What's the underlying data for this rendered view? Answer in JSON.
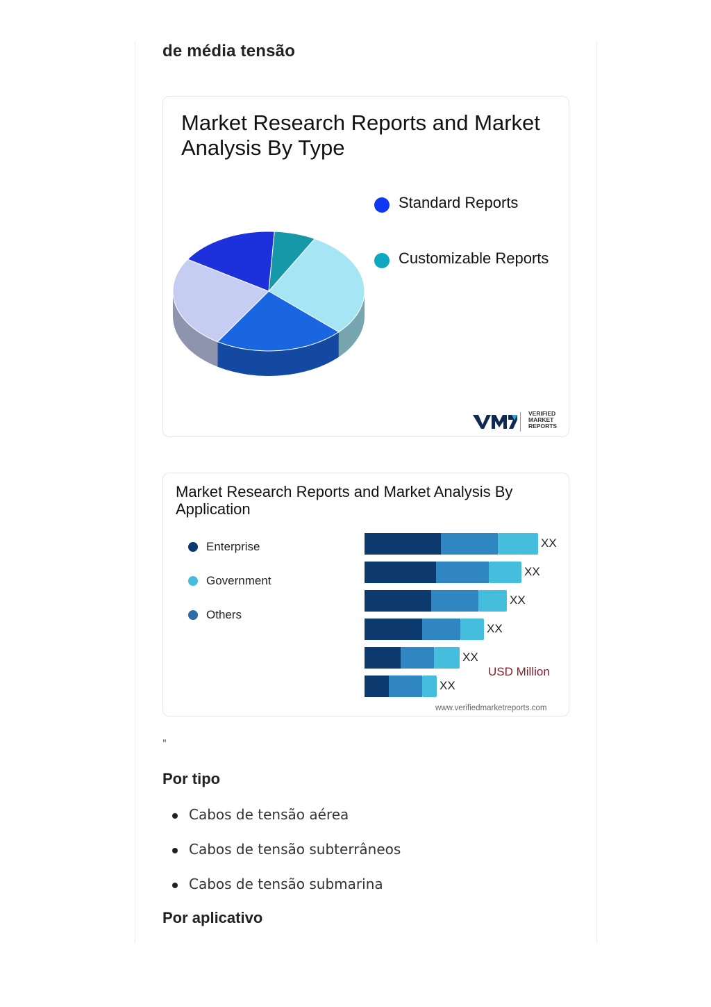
{
  "section_heading": "de média tensão",
  "type_chart": {
    "title": "Market Research Reports and Market Analysis By Type",
    "legend": [
      {
        "label": "Standard Reports",
        "color": "#1038f0"
      },
      {
        "label": "Customizable Reports",
        "color": "#10a8c0"
      }
    ],
    "logo_text": "VERIFIED MARKET REPORTS"
  },
  "chart_data": [
    {
      "type": "pie",
      "title": "Market Research Reports and Market Analysis By Type",
      "legend": [
        "Standard Reports",
        "Customizable Reports"
      ],
      "slices": [
        {
          "value": 29,
          "color": "#a6e6f4"
        },
        {
          "value": 22,
          "color": "#1a66e0"
        },
        {
          "value": 25,
          "color": "#c6cdf2"
        },
        {
          "value": 17,
          "color": "#1c30dc"
        },
        {
          "value": 7,
          "color": "#1598a8"
        }
      ]
    },
    {
      "type": "bar",
      "orientation": "horizontal",
      "stacked": true,
      "title": "Market Research Reports and Market Analysis By Application",
      "series": [
        {
          "name": "Enterprise",
          "color": "#0d3a6e",
          "values": [
            110,
            103,
            96,
            83,
            52,
            35
          ]
        },
        {
          "name": "Others",
          "color": "#2f86c0",
          "values": [
            82,
            76,
            68,
            55,
            48,
            48
          ]
        },
        {
          "name": "Government",
          "color": "#45bede",
          "values": [
            58,
            47,
            41,
            34,
            37,
            21
          ]
        }
      ],
      "data_labels": [
        "XX",
        "XX",
        "XX",
        "XX",
        "XX",
        "XX"
      ],
      "unit_label": "USD Million",
      "source": "www.verifiedmarketreports.com"
    }
  ],
  "application_chart": {
    "title": "Market Research Reports and Market Analysis By Application",
    "legend": [
      {
        "label": "Enterprise",
        "color": "#0d3a6e"
      },
      {
        "label": "Government",
        "color": "#45bede"
      },
      {
        "label": "Others",
        "color": "#2f6aa8"
      }
    ],
    "unit_label": "USD Million",
    "source": "www.verifiedmarketreports.com"
  },
  "quote_mark": "\"",
  "by_type": {
    "heading": "Por tipo",
    "items": [
      "Cabos de tensão aérea",
      "Cabos de tensão subterrâneos",
      "Cabos de tensão submarina"
    ]
  },
  "by_application": {
    "heading": "Por aplicativo"
  }
}
